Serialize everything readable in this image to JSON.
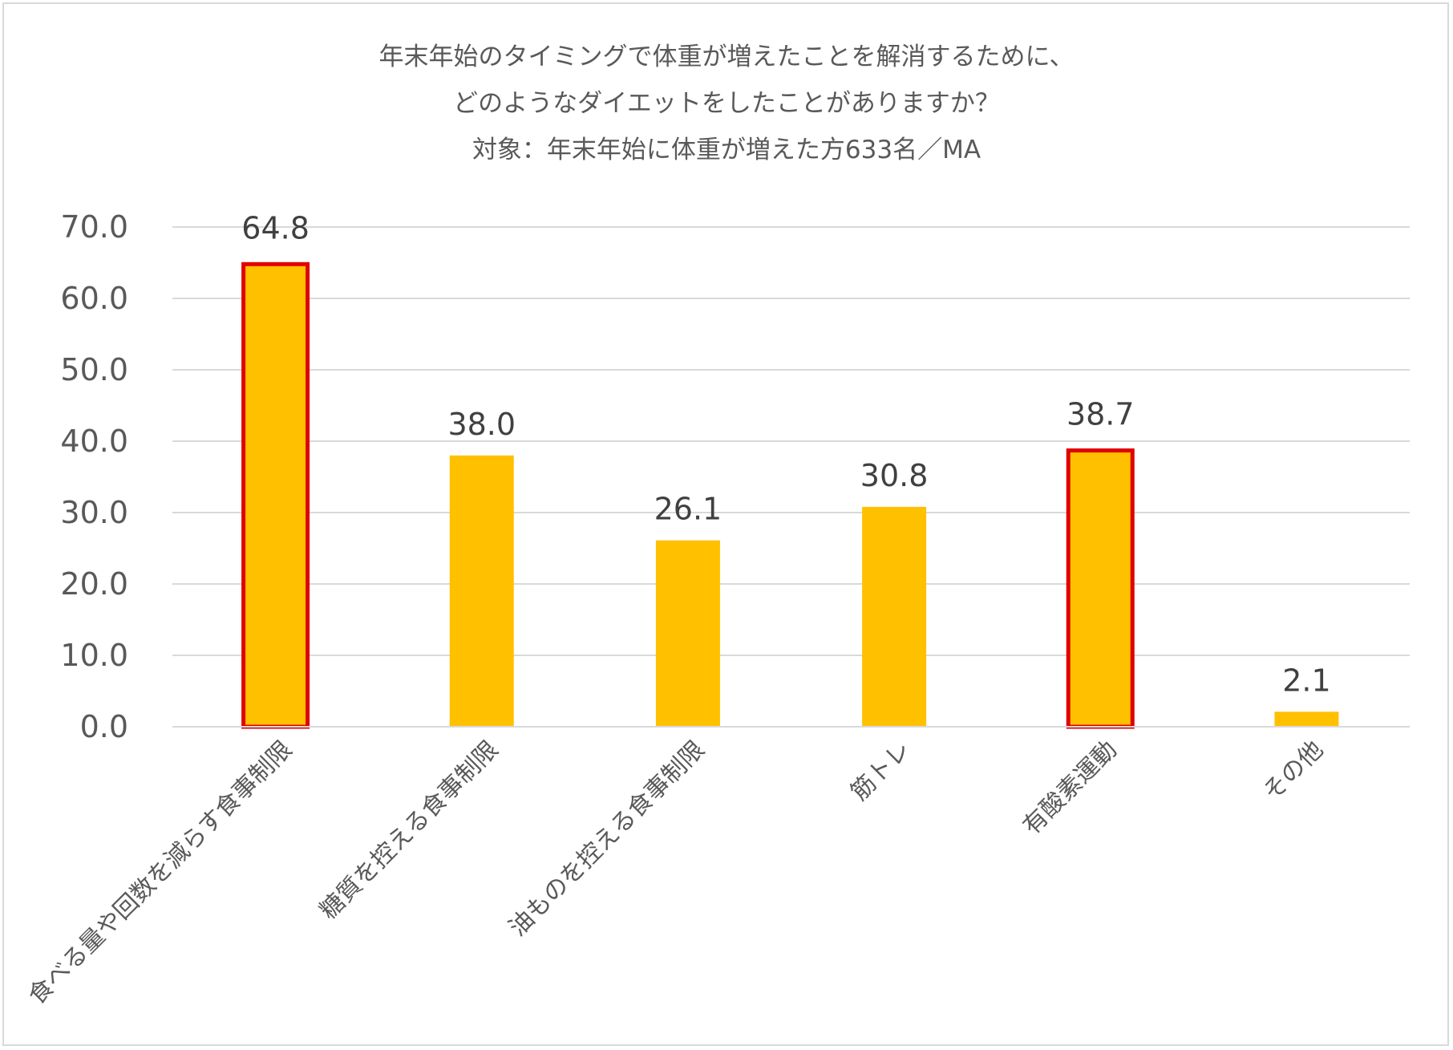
{
  "chart_data": {
    "type": "bar",
    "title_lines": [
      "年末年始のタイミングで体重が増えたことを解消するために、",
      "どのようなダイエットをしたことがありますか？",
      "対象：年末年始に体重が増えた方633名／MA"
    ],
    "categories": [
      "食べる量や回数を減らす食事制限",
      "糖質を控える食事制限",
      "油ものを控える食事制限",
      "筋トレ",
      "有酸素運動",
      "その他"
    ],
    "values": [
      64.8,
      38.0,
      26.1,
      30.8,
      38.7,
      2.1
    ],
    "value_labels": [
      "64.8",
      "38.0",
      "26.1",
      "30.8",
      "38.7",
      "2.1"
    ],
    "highlighted": [
      true,
      false,
      false,
      false,
      true,
      false
    ],
    "ylim": [
      0,
      70
    ],
    "yticks": [
      "0.0",
      "10.0",
      "20.0",
      "30.0",
      "40.0",
      "50.0",
      "60.0",
      "70.0"
    ],
    "grid": true,
    "colors": {
      "bar": "#FFC000",
      "highlight_border": "#E00000",
      "grid": "#D9D9D9"
    }
  }
}
